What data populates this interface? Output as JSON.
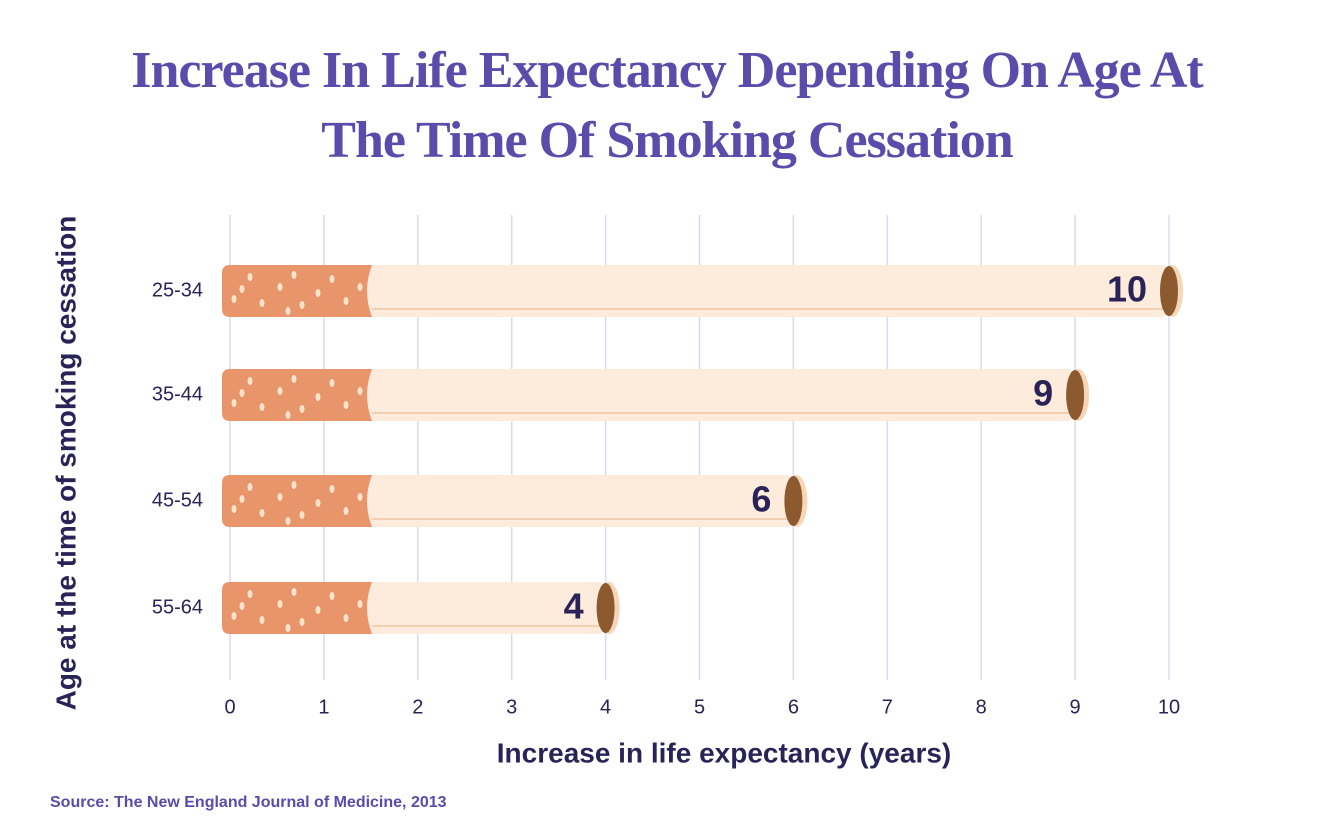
{
  "chart_data": {
    "type": "bar",
    "orientation": "horizontal",
    "title": "Increase In Life Expectancy Depending On Age At The Time Of Smoking Cessation",
    "x_label": "Increase in life expectancy (years)",
    "y_label": "Age at the time of smoking cessation",
    "source": "Source: The New England Journal of Medicine, 2013",
    "categories": [
      "25-34",
      "35-44",
      "45-54",
      "55-64"
    ],
    "values": [
      10,
      9,
      6,
      4
    ],
    "color": "#fdebdc",
    "xlim": [
      0,
      10
    ],
    "xticks": [
      0,
      1,
      2,
      3,
      4,
      5,
      6,
      7,
      8,
      9,
      10
    ],
    "grid": true
  }
}
